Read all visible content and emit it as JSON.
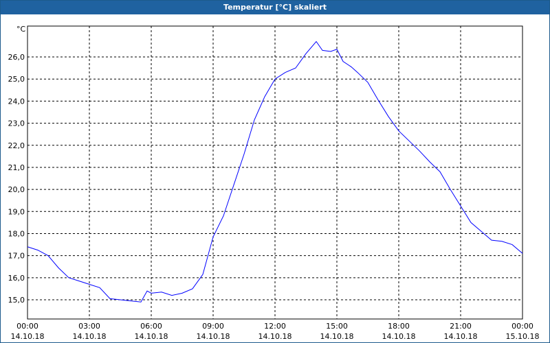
{
  "chart_data": {
    "type": "line",
    "title": "Temperatur [°C] skaliert",
    "y_unit": "°C",
    "xlim": [
      0,
      24
    ],
    "ylim": [
      14.13,
      27.4
    ],
    "grid": true,
    "xticks": [
      {
        "value": 0,
        "label": "00:00"
      },
      {
        "value": 3,
        "label": "03:00"
      },
      {
        "value": 6,
        "label": "06:00"
      },
      {
        "value": 9,
        "label": "09:00"
      },
      {
        "value": 12,
        "label": "12:00"
      },
      {
        "value": 15,
        "label": "15:00"
      },
      {
        "value": 18,
        "label": "18:00"
      },
      {
        "value": 21,
        "label": "21:00"
      },
      {
        "value": 24,
        "label": "00:00"
      }
    ],
    "xtick_dates": [
      "14.10.18",
      "14.10.18",
      "14.10.18",
      "14.10.18",
      "14.10.18",
      "14.10.18",
      "14.10.18",
      "14.10.18",
      "15.10.18"
    ],
    "yticks": [
      {
        "value": 15,
        "label": "15,0"
      },
      {
        "value": 16,
        "label": "16,0"
      },
      {
        "value": 17,
        "label": "17,0"
      },
      {
        "value": 18,
        "label": "18,0"
      },
      {
        "value": 19,
        "label": "19,0"
      },
      {
        "value": 20,
        "label": "20,0"
      },
      {
        "value": 21,
        "label": "21,0"
      },
      {
        "value": 22,
        "label": "22,0"
      },
      {
        "value": 23,
        "label": "23,0"
      },
      {
        "value": 24,
        "label": "24,0"
      },
      {
        "value": 25,
        "label": "25,0"
      },
      {
        "value": 26,
        "label": "26,0"
      }
    ],
    "x": [
      0,
      0.5,
      1,
      1.5,
      2,
      2.5,
      3,
      3.5,
      4,
      4.5,
      5,
      5.5,
      5.8,
      6,
      6.5,
      7,
      7.5,
      8,
      8.5,
      9,
      9.5,
      10,
      10.5,
      11,
      11.5,
      12,
      12.5,
      13,
      13.5,
      14,
      14.3,
      14.7,
      15,
      15.3,
      15.7,
      16,
      16.5,
      17,
      17.5,
      18,
      18.5,
      19,
      19.5,
      20,
      20.5,
      21,
      21.5,
      22,
      22.5,
      23,
      23.5,
      24
    ],
    "series": [
      {
        "color": "#0000ff",
        "values": [
          17.4,
          17.25,
          17.0,
          16.45,
          16.0,
          15.85,
          15.7,
          15.55,
          15.05,
          15.0,
          14.95,
          14.9,
          15.4,
          15.3,
          15.35,
          15.2,
          15.3,
          15.5,
          16.15,
          17.85,
          18.8,
          20.2,
          21.6,
          23.15,
          24.2,
          25.0,
          25.3,
          25.5,
          26.15,
          26.7,
          26.3,
          26.25,
          26.35,
          25.8,
          25.55,
          25.3,
          24.85,
          24.05,
          23.3,
          22.65,
          22.2,
          21.75,
          21.25,
          20.8,
          20.0,
          19.25,
          18.5,
          18.1,
          17.7,
          17.65,
          17.5,
          17.1
        ]
      }
    ]
  }
}
